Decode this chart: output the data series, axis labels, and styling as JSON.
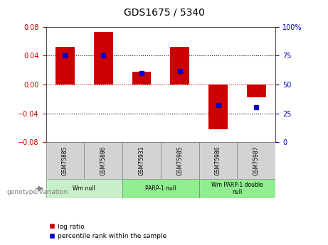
{
  "title": "GDS1675 / 5340",
  "samples": [
    "GSM75885",
    "GSM75886",
    "GSM75931",
    "GSM75985",
    "GSM75986",
    "GSM75987"
  ],
  "log_ratios": [
    0.052,
    0.073,
    0.018,
    0.052,
    -0.062,
    -0.018
  ],
  "percentile_ranks": [
    75,
    75,
    60,
    62,
    32,
    30
  ],
  "groups": [
    {
      "label": "Wrn null",
      "start": 0,
      "end": 2,
      "color": "#c8f0c8"
    },
    {
      "label": "PARP-1 null",
      "start": 2,
      "end": 4,
      "color": "#90ee90"
    },
    {
      "label": "Wrn PARP-1 double\nnull",
      "start": 4,
      "end": 6,
      "color": "#90ee90"
    }
  ],
  "ylim": [
    -0.08,
    0.08
  ],
  "bar_color": "#cc0000",
  "dot_color": "#0000cc",
  "grid_color": "#000000",
  "zero_line_color": "#cc0000",
  "bg_color": "#ffffff",
  "plot_bg": "#ffffff",
  "legend_log_ratio": "log ratio",
  "legend_percentile": "percentile rank within the sample",
  "genotype_label": "genotype/variation",
  "left_tick_color": "#cc0000",
  "right_tick_color": "#0000cc",
  "yticks_left": [
    -0.08,
    -0.04,
    0,
    0.04,
    0.08
  ],
  "dotted_lines": [
    -0.04,
    0.04
  ],
  "bar_width": 0.5,
  "sample_box_color": "#d3d3d3"
}
